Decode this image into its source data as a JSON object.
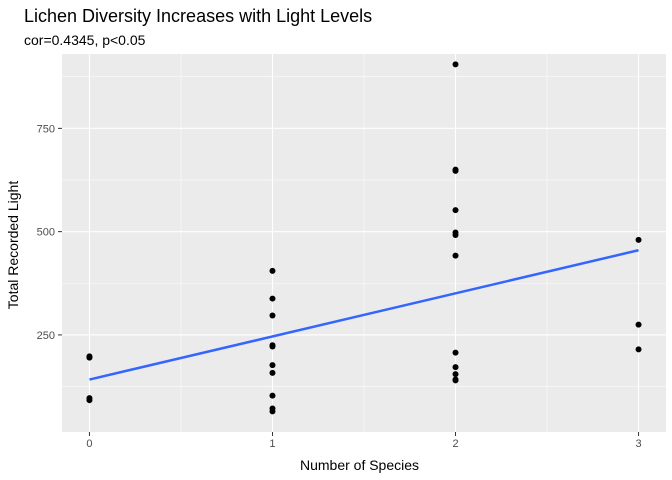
{
  "chart_data": {
    "type": "scatter",
    "title": "Lichen Diversity Increases with Light Levels",
    "subtitle": "cor=0.4345, p<0.05",
    "xlabel": "Number of Species",
    "ylabel": "Total Recorded Light",
    "xlim": [
      -0.15,
      3.15
    ],
    "ylim": [
      15,
      930
    ],
    "x_ticks": [
      0,
      1,
      2,
      3
    ],
    "y_ticks": [
      250,
      500,
      750
    ],
    "grid": true,
    "points": [
      {
        "x": 0,
        "y": 198
      },
      {
        "x": 0,
        "y": 195
      },
      {
        "x": 0,
        "y": 97
      },
      {
        "x": 0,
        "y": 92
      },
      {
        "x": 1,
        "y": 405
      },
      {
        "x": 1,
        "y": 338
      },
      {
        "x": 1,
        "y": 297
      },
      {
        "x": 1,
        "y": 225
      },
      {
        "x": 1,
        "y": 222
      },
      {
        "x": 1,
        "y": 177
      },
      {
        "x": 1,
        "y": 158
      },
      {
        "x": 1,
        "y": 103
      },
      {
        "x": 1,
        "y": 72
      },
      {
        "x": 1,
        "y": 65
      },
      {
        "x": 2,
        "y": 905
      },
      {
        "x": 2,
        "y": 650
      },
      {
        "x": 2,
        "y": 647
      },
      {
        "x": 2,
        "y": 552
      },
      {
        "x": 2,
        "y": 498
      },
      {
        "x": 2,
        "y": 492
      },
      {
        "x": 2,
        "y": 442
      },
      {
        "x": 2,
        "y": 207
      },
      {
        "x": 2,
        "y": 172
      },
      {
        "x": 2,
        "y": 155
      },
      {
        "x": 2,
        "y": 142
      },
      {
        "x": 2,
        "y": 140
      },
      {
        "x": 3,
        "y": 480
      },
      {
        "x": 3,
        "y": 275
      },
      {
        "x": 3,
        "y": 215
      }
    ],
    "fit_line": {
      "x": [
        0,
        3
      ],
      "y": [
        142,
        455
      ],
      "color": "#3366ff"
    },
    "colors": {
      "panel": "#ebebeb",
      "grid": "#ffffff",
      "point": "#000000"
    }
  }
}
